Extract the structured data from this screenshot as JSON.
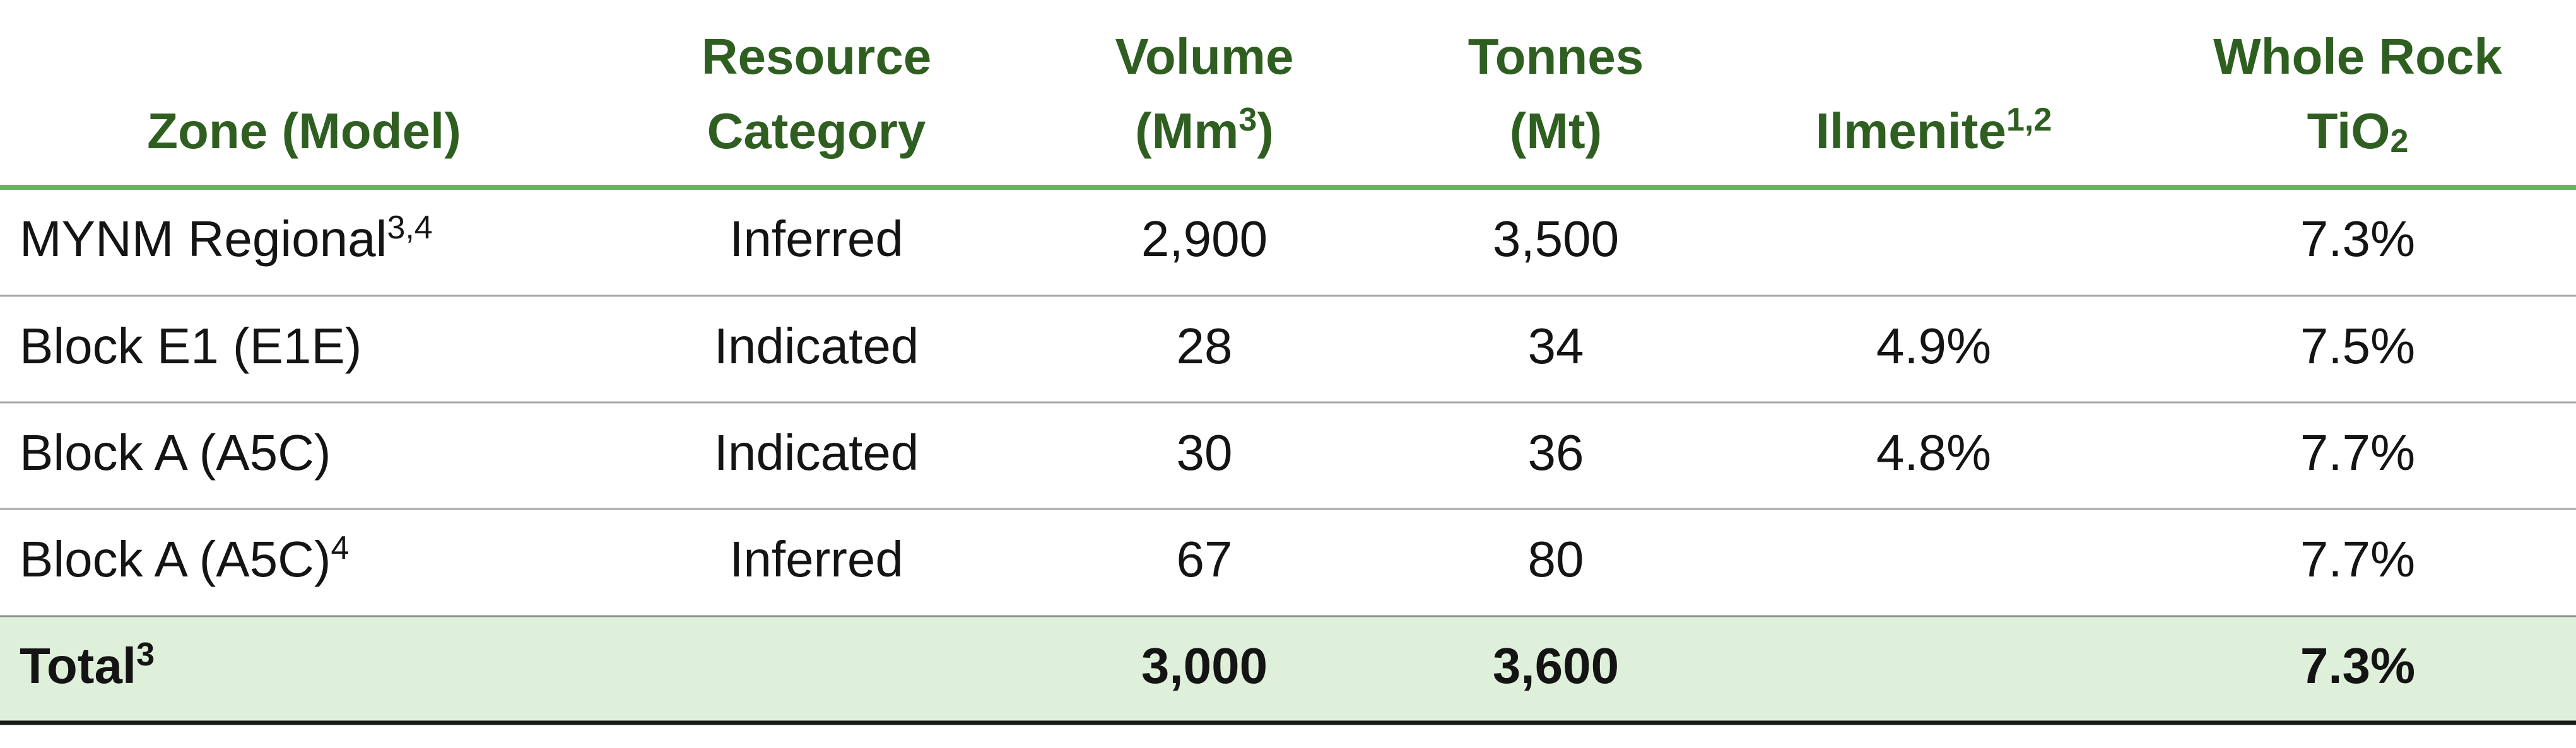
{
  "table": {
    "columns": [
      [
        [
          "Zone (Model)"
        ]
      ],
      [
        [
          "Resource"
        ],
        [
          "Category"
        ]
      ],
      [
        [
          "Volume"
        ],
        [
          "(Mm",
          {
            "sup": "3"
          },
          ")"
        ]
      ],
      [
        [
          "Tonnes"
        ],
        [
          "(Mt)"
        ]
      ],
      [
        [
          "Ilmenite",
          {
            "sup": "1,2"
          }
        ]
      ],
      [
        [
          "Whole Rock"
        ],
        [
          "TiO",
          {
            "sub": "2"
          }
        ]
      ]
    ],
    "rows": [
      [
        [
          "MYNM Regional",
          {
            "sup": "3,4"
          }
        ],
        "Inferred",
        "2,900",
        "3,500",
        null,
        "7.3%"
      ],
      [
        "Block E1 (E1E)",
        "Indicated",
        "28",
        "34",
        "4.9%",
        "7.5%"
      ],
      [
        "Block A (A5C)",
        "Indicated",
        "30",
        "36",
        "4.8%",
        "7.7%"
      ],
      [
        [
          "Block A (A5C)",
          {
            "sup": "4"
          }
        ],
        "Inferred",
        "67",
        "80",
        null,
        "7.7%"
      ]
    ],
    "total_row": [
      [
        "Total",
        {
          "sup": "3"
        }
      ],
      null,
      "3,000",
      "3,600",
      null,
      "7.3%"
    ]
  }
}
